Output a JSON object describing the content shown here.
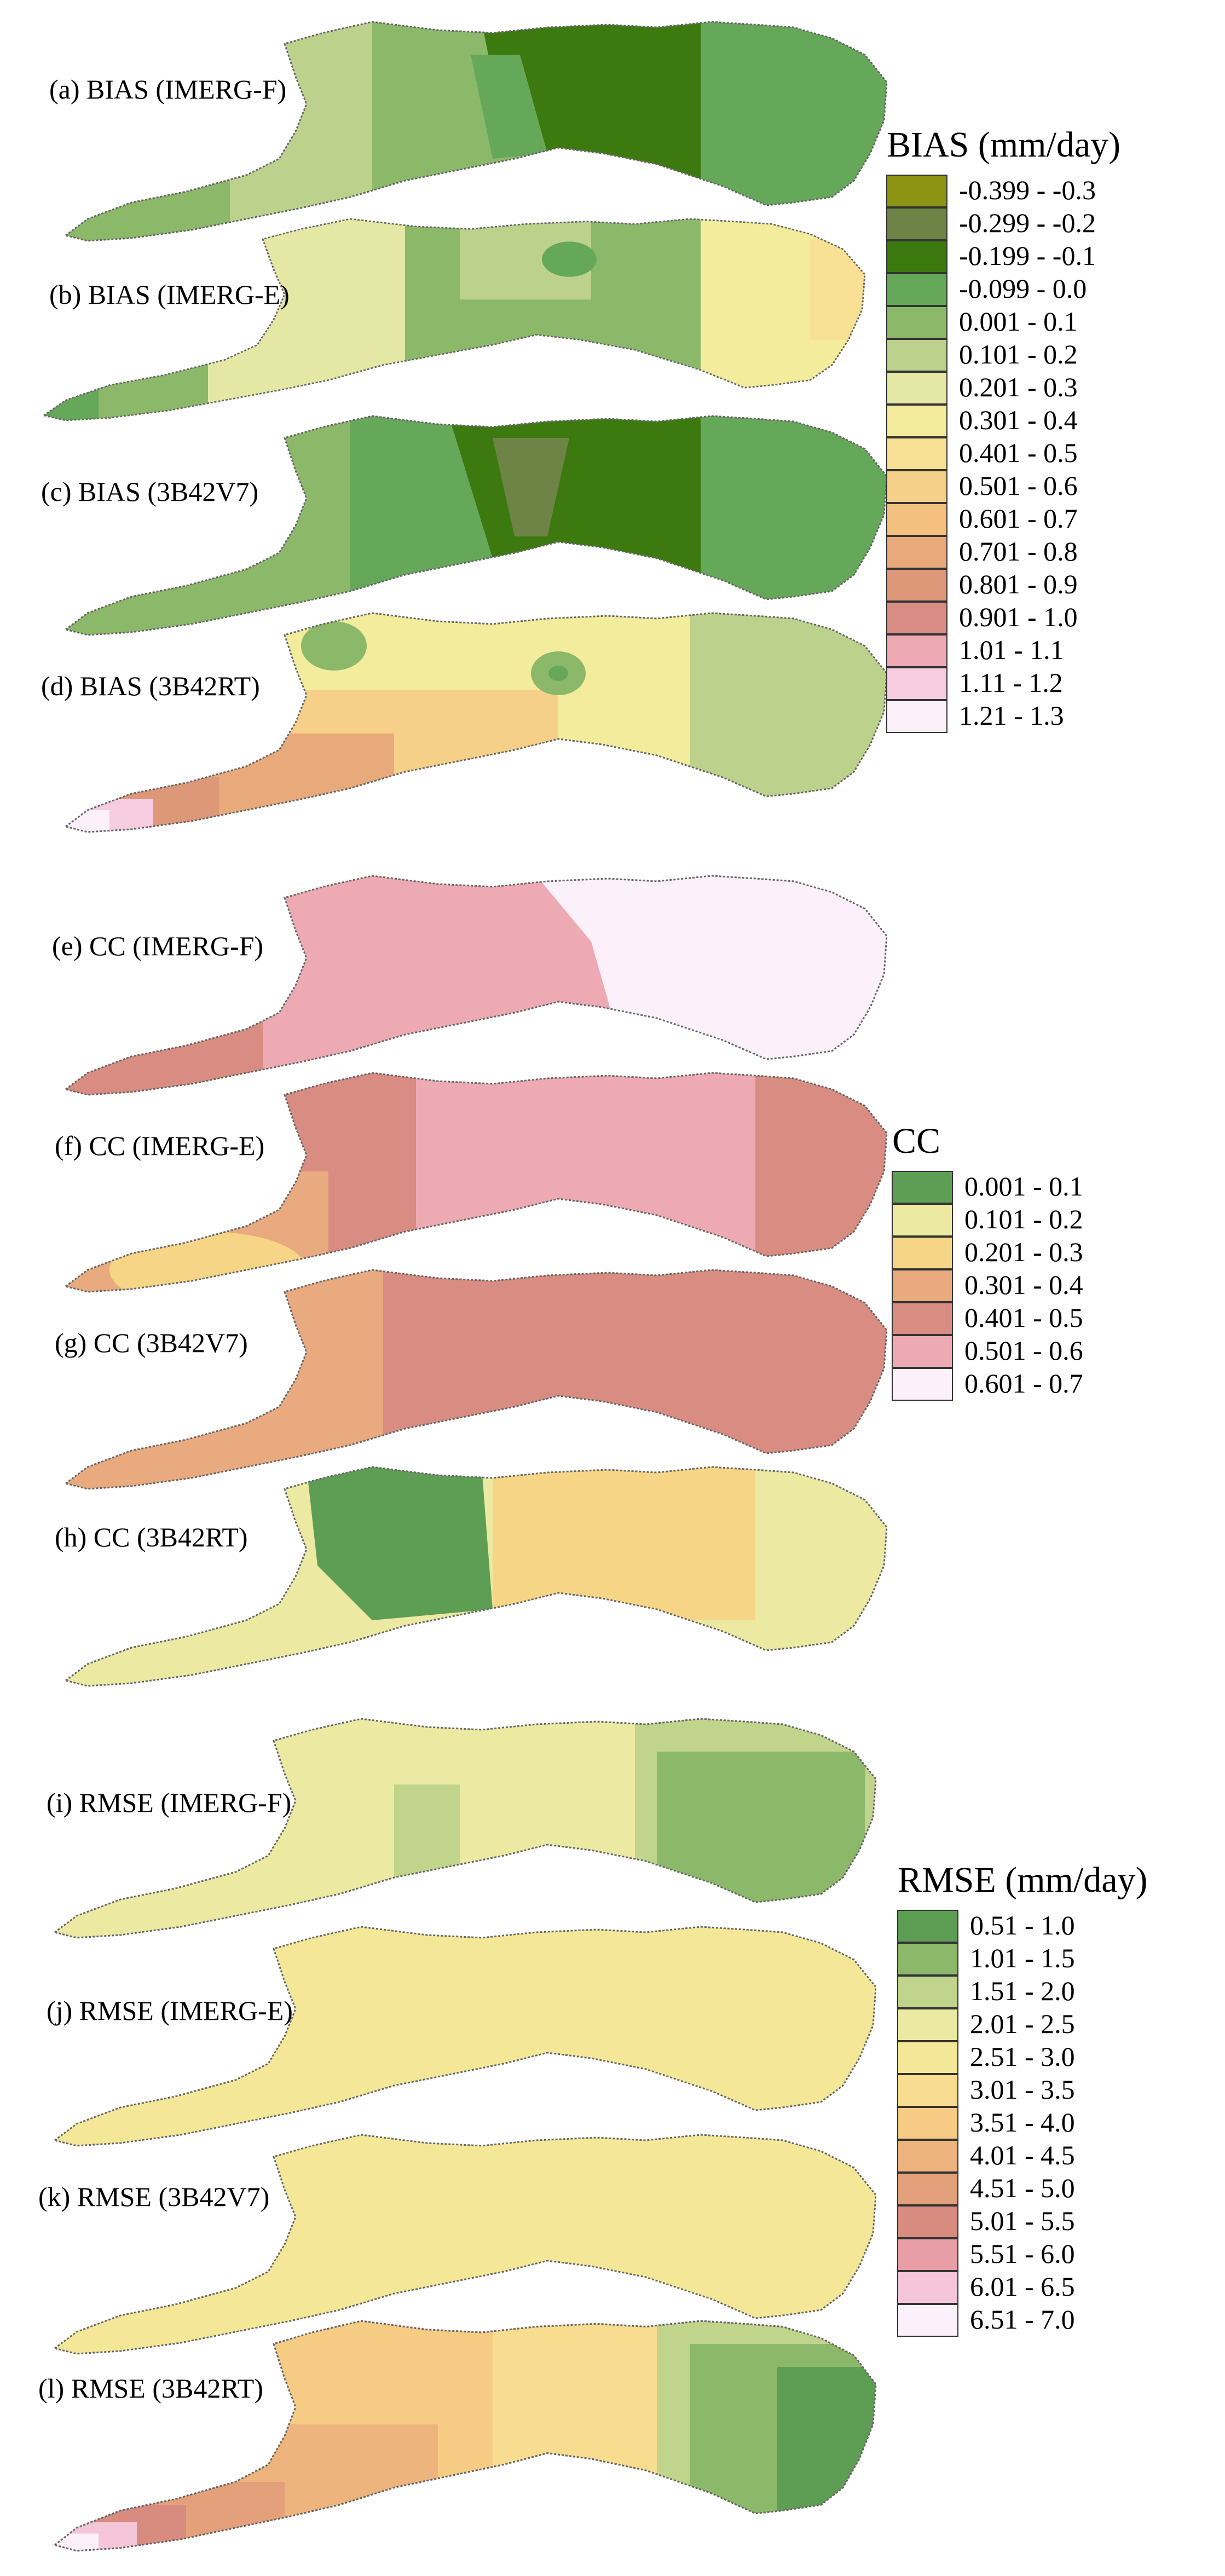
{
  "panels": [
    {
      "label": "(a) BIAS (IMERG-F)",
      "group": "bias"
    },
    {
      "label": "(b) BIAS (IMERG-E)",
      "group": "bias"
    },
    {
      "label": "(c) BIAS (3B42V7)",
      "group": "bias"
    },
    {
      "label": "(d) BIAS (3B42RT)",
      "group": "bias"
    },
    {
      "label": "(e) CC (IMERG-F)",
      "group": "cc"
    },
    {
      "label": "(f) CC (IMERG-E)",
      "group": "cc"
    },
    {
      "label": "(g) CC (3B42V7)",
      "group": "cc"
    },
    {
      "label": "(h) CC (3B42RT)",
      "group": "cc"
    },
    {
      "label": "(i) RMSE (IMERG-F)",
      "group": "rmse"
    },
    {
      "label": "(j) RMSE (IMERG-E)",
      "group": "rmse"
    },
    {
      "label": "(k) RMSE (3B42V7)",
      "group": "rmse"
    },
    {
      "label": "(l) RMSE (3B42RT)",
      "group": "rmse"
    }
  ],
  "legends": {
    "bias": {
      "title": "BIAS (mm/day)",
      "items": [
        {
          "range": "-0.399 - -0.3",
          "color": "#8c9414"
        },
        {
          "range": "-0.299 - -0.2",
          "color": "#6e8446"
        },
        {
          "range": "-0.199 - -0.1",
          "color": "#3c7a10"
        },
        {
          "range": "-0.099 - 0.0",
          "color": "#66a85a"
        },
        {
          "range": "0.001 - 0.1",
          "color": "#8cb86a"
        },
        {
          "range": "0.101 - 0.2",
          "color": "#bcd28c"
        },
        {
          "range": "0.201 - 0.3",
          "color": "#e4e8a4"
        },
        {
          "range": "0.301 - 0.4",
          "color": "#f2ec9c"
        },
        {
          "range": "0.401 - 0.5",
          "color": "#f8e094"
        },
        {
          "range": "0.501 - 0.6",
          "color": "#f6d088"
        },
        {
          "range": "0.601 - 0.7",
          "color": "#f4c080"
        },
        {
          "range": "0.701 - 0.8",
          "color": "#e8aa7a"
        },
        {
          "range": "0.801 - 0.9",
          "color": "#dc9878"
        },
        {
          "range": "0.901 - 1.0",
          "color": "#d88c84"
        },
        {
          "range": "1.01 - 1.1",
          "color": "#eeaab4"
        },
        {
          "range": "1.11 - 1.2",
          "color": "#f6cce0"
        },
        {
          "range": "1.21 - 1.3",
          "color": "#fcf0fa"
        }
      ]
    },
    "cc": {
      "title": "CC",
      "items": [
        {
          "range": "0.001 - 0.1",
          "color": "#5e9e54"
        },
        {
          "range": "0.101 - 0.2",
          "color": "#ece9a2"
        },
        {
          "range": "0.201 - 0.3",
          "color": "#f6d686"
        },
        {
          "range": "0.301 - 0.4",
          "color": "#e8aa7e"
        },
        {
          "range": "0.401 - 0.5",
          "color": "#d88c82"
        },
        {
          "range": "0.501 - 0.6",
          "color": "#eeaab2"
        },
        {
          "range": "0.601 - 0.7",
          "color": "#fcf0fa"
        }
      ]
    },
    "rmse": {
      "title": "RMSE (mm/day)",
      "items": [
        {
          "range": "0.51 - 1.0",
          "color": "#5e9e54"
        },
        {
          "range": "1.01 - 1.5",
          "color": "#8cb86a"
        },
        {
          "range": "1.51 - 2.0",
          "color": "#c0d48c"
        },
        {
          "range": "2.01 - 2.5",
          "color": "#ece9a2"
        },
        {
          "range": "2.51 - 3.0",
          "color": "#f4e898"
        },
        {
          "range": "3.01 - 3.5",
          "color": "#f8dc90"
        },
        {
          "range": "3.51 - 4.0",
          "color": "#f6cc84"
        },
        {
          "range": "4.01 - 4.5",
          "color": "#eeb47e"
        },
        {
          "range": "4.51 - 5.0",
          "color": "#e4a07a"
        },
        {
          "range": "5.01 - 5.5",
          "color": "#d88c80"
        },
        {
          "range": "5.51 - 6.0",
          "color": "#e89ea6"
        },
        {
          "range": "6.01 - 6.5",
          "color": "#f4c6d8"
        },
        {
          "range": "6.51 - 7.0",
          "color": "#fcf0fa"
        }
      ]
    }
  }
}
